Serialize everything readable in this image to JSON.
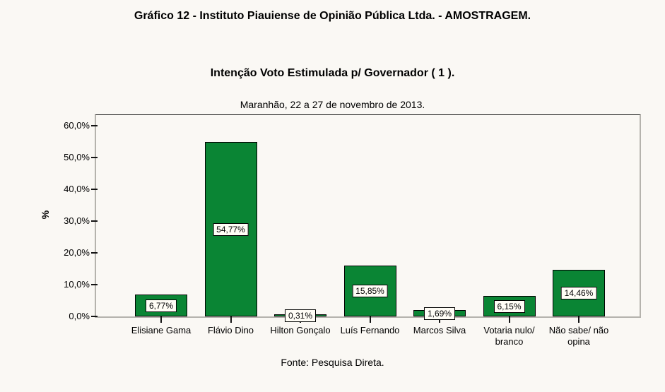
{
  "chart_data": {
    "type": "bar",
    "title": "Gráfico 12 - Instituto Piauiense de Opinião Pública Ltda. - AMOSTRAGEM.",
    "subtitle": "Intenção Voto Estimulada p/ Governador ( 1 ).",
    "date_line": "Maranhão, 22 a 27 de novembro de 2013.",
    "source": "Fonte: Pesquisa Direta.",
    "ylabel": "%",
    "ylim": [
      0,
      60
    ],
    "grid": false,
    "legend": false,
    "bar_color": "#0a8534",
    "bar_border_color": "#000000",
    "axis_color": "#b5b3ad",
    "value_box_bg": "#fffdf6",
    "yticks": [
      {
        "value": 0,
        "label": "0,0%"
      },
      {
        "value": 10,
        "label": "10,0%"
      },
      {
        "value": 20,
        "label": "20,0%"
      },
      {
        "value": 30,
        "label": "30,0%"
      },
      {
        "value": 40,
        "label": "40,0%"
      },
      {
        "value": 50,
        "label": "50,0%"
      },
      {
        "value": 60,
        "label": "60,0%"
      }
    ],
    "categories": [
      "Elisiane Gama",
      "Flávio Dino",
      "Hilton Gonçalo",
      "Luís Fernando",
      "Marcos Silva",
      "Votaria nulo/\nbranco",
      "Não sabe/ não\nopina"
    ],
    "values": [
      6.77,
      54.77,
      0.31,
      15.85,
      1.69,
      6.15,
      14.46
    ],
    "value_labels": [
      "6,77%",
      "54,77%",
      "0,31%",
      "15,85%",
      "1,69%",
      "6,15%",
      "14,46%"
    ]
  }
}
